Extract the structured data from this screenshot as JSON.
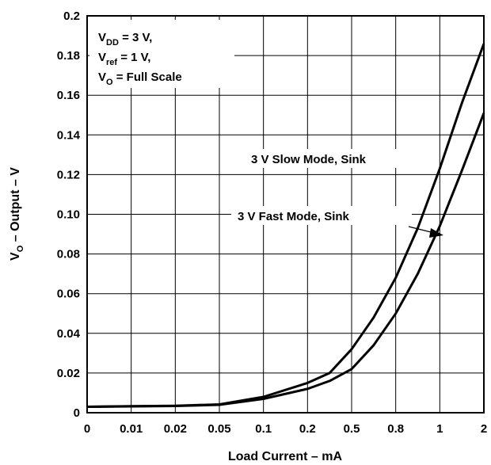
{
  "chart_data": {
    "type": "line",
    "xlabel": "Load Current – mA",
    "ylabel": {
      "main": "V",
      "sub": "O",
      "rest": " – Output – V"
    },
    "x_tick_labels": [
      "0",
      "0.01",
      "0.02",
      "0.05",
      "0.1",
      "0.2",
      "0.5",
      "0.8",
      "1",
      "2"
    ],
    "y_ticks": [
      0,
      0.02,
      0.04,
      0.06,
      0.08,
      0.1,
      0.12,
      0.14,
      0.16,
      0.18,
      0.2
    ],
    "y_tick_labels": [
      "0",
      "0.02",
      "0.04",
      "0.06",
      "0.08",
      "0.10",
      "0.12",
      "0.14",
      "0.16",
      "0.18",
      "0.2"
    ],
    "ylim": [
      0,
      0.2
    ],
    "grid": true,
    "conditions": [
      {
        "main": "V",
        "sub": "DD",
        "rest": " = 3 V,"
      },
      {
        "main": "V",
        "sub": "ref",
        "rest": " = 1 V,"
      },
      {
        "main": "V",
        "sub": "O",
        "rest": " = Full Scale"
      }
    ],
    "series": [
      {
        "name": "3 V Slow Mode, Sink",
        "x_tick_index": [
          0,
          1,
          2,
          3,
          4,
          5,
          5.5,
          6,
          6.5,
          7,
          7.5,
          8,
          8.5,
          9
        ],
        "values": [
          0.003,
          0.0033,
          0.0035,
          0.0042,
          0.008,
          0.015,
          0.02,
          0.032,
          0.048,
          0.068,
          0.093,
          0.123,
          0.156,
          0.186
        ]
      },
      {
        "name": "3 V Fast Mode, Sink",
        "x_tick_index": [
          0,
          1,
          2,
          3,
          4,
          5,
          5.5,
          6,
          6.5,
          7,
          7.5,
          8,
          8.5,
          9
        ],
        "values": [
          0.003,
          0.0032,
          0.0034,
          0.004,
          0.007,
          0.012,
          0.016,
          0.022,
          0.034,
          0.05,
          0.07,
          0.094,
          0.122,
          0.151
        ]
      }
    ],
    "annotations": [
      {
        "text": "3 V Slow Mode, Sink",
        "target_series": 0
      },
      {
        "text": "3 V Fast Mode, Sink",
        "target_series": 1
      }
    ]
  }
}
